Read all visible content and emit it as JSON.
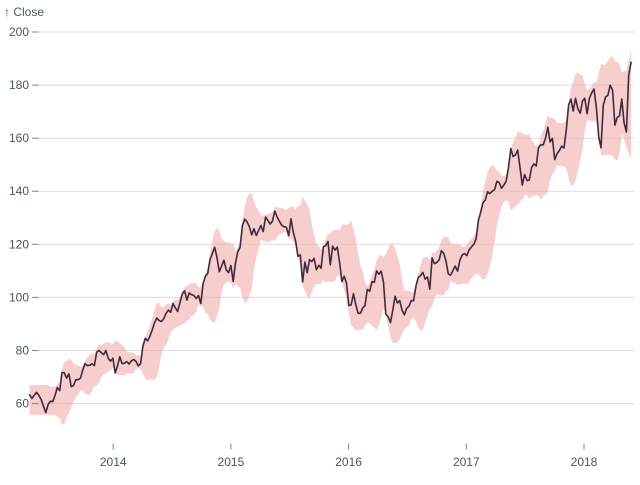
{
  "chart_data": {
    "type": "line",
    "title": "",
    "ylabel_display": "↑ Close",
    "ylabel": "Close",
    "xlabel": "",
    "grid": "horizontal",
    "legend": "none",
    "x_domain": [
      2013.285,
      2018.425
    ],
    "y_domain": [
      42.5,
      200
    ],
    "x_ticks": [
      2014,
      2015,
      2016,
      2017,
      2018
    ],
    "x_tick_labels": [
      "2014",
      "2015",
      "2016",
      "2017",
      "2018"
    ],
    "y_ticks": [
      60,
      80,
      100,
      120,
      140,
      160,
      180,
      200
    ],
    "y_tick_labels": [
      "60",
      "80",
      "100",
      "120",
      "140",
      "160",
      "180",
      "200"
    ],
    "colors": {
      "line": "#412a3c",
      "band_fill": "#f2abab",
      "band_opacity": 0.58,
      "grid": "#dcdcdc",
      "axis_text": "#4a5568",
      "tick_mark": "#7c869a",
      "background": "#ffffff"
    },
    "band": {
      "method": "bollinger",
      "window": 9,
      "k": 2.4,
      "min_frac": 0.033
    },
    "series": [
      {
        "name": "Close",
        "x_start": 2013.29,
        "x_step": 0.019654,
        "values": [
          63.3,
          61.9,
          63.1,
          64.2,
          63.1,
          61.4,
          59.0,
          56.6,
          59.6,
          60.9,
          60.7,
          63.0,
          66.0,
          64.9,
          71.7,
          71.6,
          69.6,
          71.2,
          66.4,
          66.8,
          69.0,
          69.0,
          69.6,
          72.7,
          75.0,
          74.3,
          74.4,
          75.0,
          74.3,
          79.4,
          80.0,
          79.2,
          78.4,
          80.0,
          77.1,
          76.0,
          77.1,
          71.5,
          74.2,
          77.6,
          75.0,
          75.2,
          75.8,
          74.9,
          76.1,
          76.6,
          75.9,
          74.2,
          75.0,
          81.7,
          84.6,
          83.6,
          85.3,
          87.7,
          90.4,
          92.2,
          91.3,
          90.9,
          92.0,
          94.0,
          95.2,
          94.4,
          97.7,
          96.1,
          94.7,
          98.0,
          101.3,
          102.5,
          99.0,
          101.7,
          101.0,
          100.8,
          99.6,
          100.7,
          97.7,
          105.2,
          108.0,
          109.0,
          114.2,
          116.5,
          118.9,
          115.0,
          109.7,
          111.8,
          114.0,
          110.4,
          109.3,
          112.0,
          106.0,
          113.0,
          117.2,
          118.9,
          127.1,
          129.5,
          128.5,
          126.6,
          123.6,
          125.9,
          123.3,
          125.3,
          127.1,
          124.8,
          130.3,
          129.0,
          127.6,
          128.8,
          132.5,
          130.3,
          128.7,
          127.2,
          126.6,
          126.4,
          123.3,
          129.6,
          124.5,
          121.3,
          115.5,
          116.0,
          105.8,
          113.3,
          109.3,
          114.2,
          113.5,
          114.7,
          110.4,
          112.1,
          111.0,
          119.1,
          119.5,
          121.1,
          112.3,
          119.3,
          117.8,
          119.0,
          113.2,
          106.0,
          108.0,
          105.3,
          97.0,
          97.1,
          101.4,
          97.3,
          94.0,
          94.0,
          96.0,
          96.9,
          103.0,
          102.3,
          105.9,
          105.7,
          110.0,
          108.7,
          109.9,
          105.7,
          93.7,
          92.7,
          90.5,
          95.2,
          100.4,
          97.9,
          98.8,
          95.3,
          93.4,
          95.9,
          96.7,
          98.8,
          98.7,
          104.2,
          107.5,
          108.2,
          109.4,
          106.9,
          107.7,
          103.1,
          114.9,
          112.7,
          113.1,
          114.1,
          117.6,
          116.6,
          113.7,
          108.8,
          108.4,
          110.1,
          111.8,
          109.9,
          114.0,
          116.0,
          116.5,
          115.8,
          117.9,
          119.0,
          120.0,
          122.0,
          129.1,
          132.1,
          135.7,
          136.7,
          139.8,
          139.1,
          140.0,
          140.6,
          143.7,
          143.3,
          141.1,
          142.3,
          143.7,
          149.0,
          156.1,
          153.1,
          153.6,
          155.5,
          149.0,
          142.3,
          146.3,
          144.0,
          144.2,
          149.0,
          150.3,
          149.5,
          156.4,
          157.5,
          157.5,
          159.9,
          164.1,
          158.6,
          159.9,
          151.9,
          154.1,
          155.3,
          157.0,
          156.3,
          163.1,
          172.5,
          174.7,
          170.2,
          175.0,
          171.1,
          169.4,
          174.0,
          175.0,
          169.2,
          175.0,
          177.1,
          178.5,
          171.5,
          160.5,
          156.4,
          172.4,
          175.5,
          176.2,
          180.0,
          178.0,
          164.9,
          167.8,
          168.4,
          174.7,
          165.7,
          162.3,
          183.8,
          188.6
        ]
      }
    ]
  }
}
